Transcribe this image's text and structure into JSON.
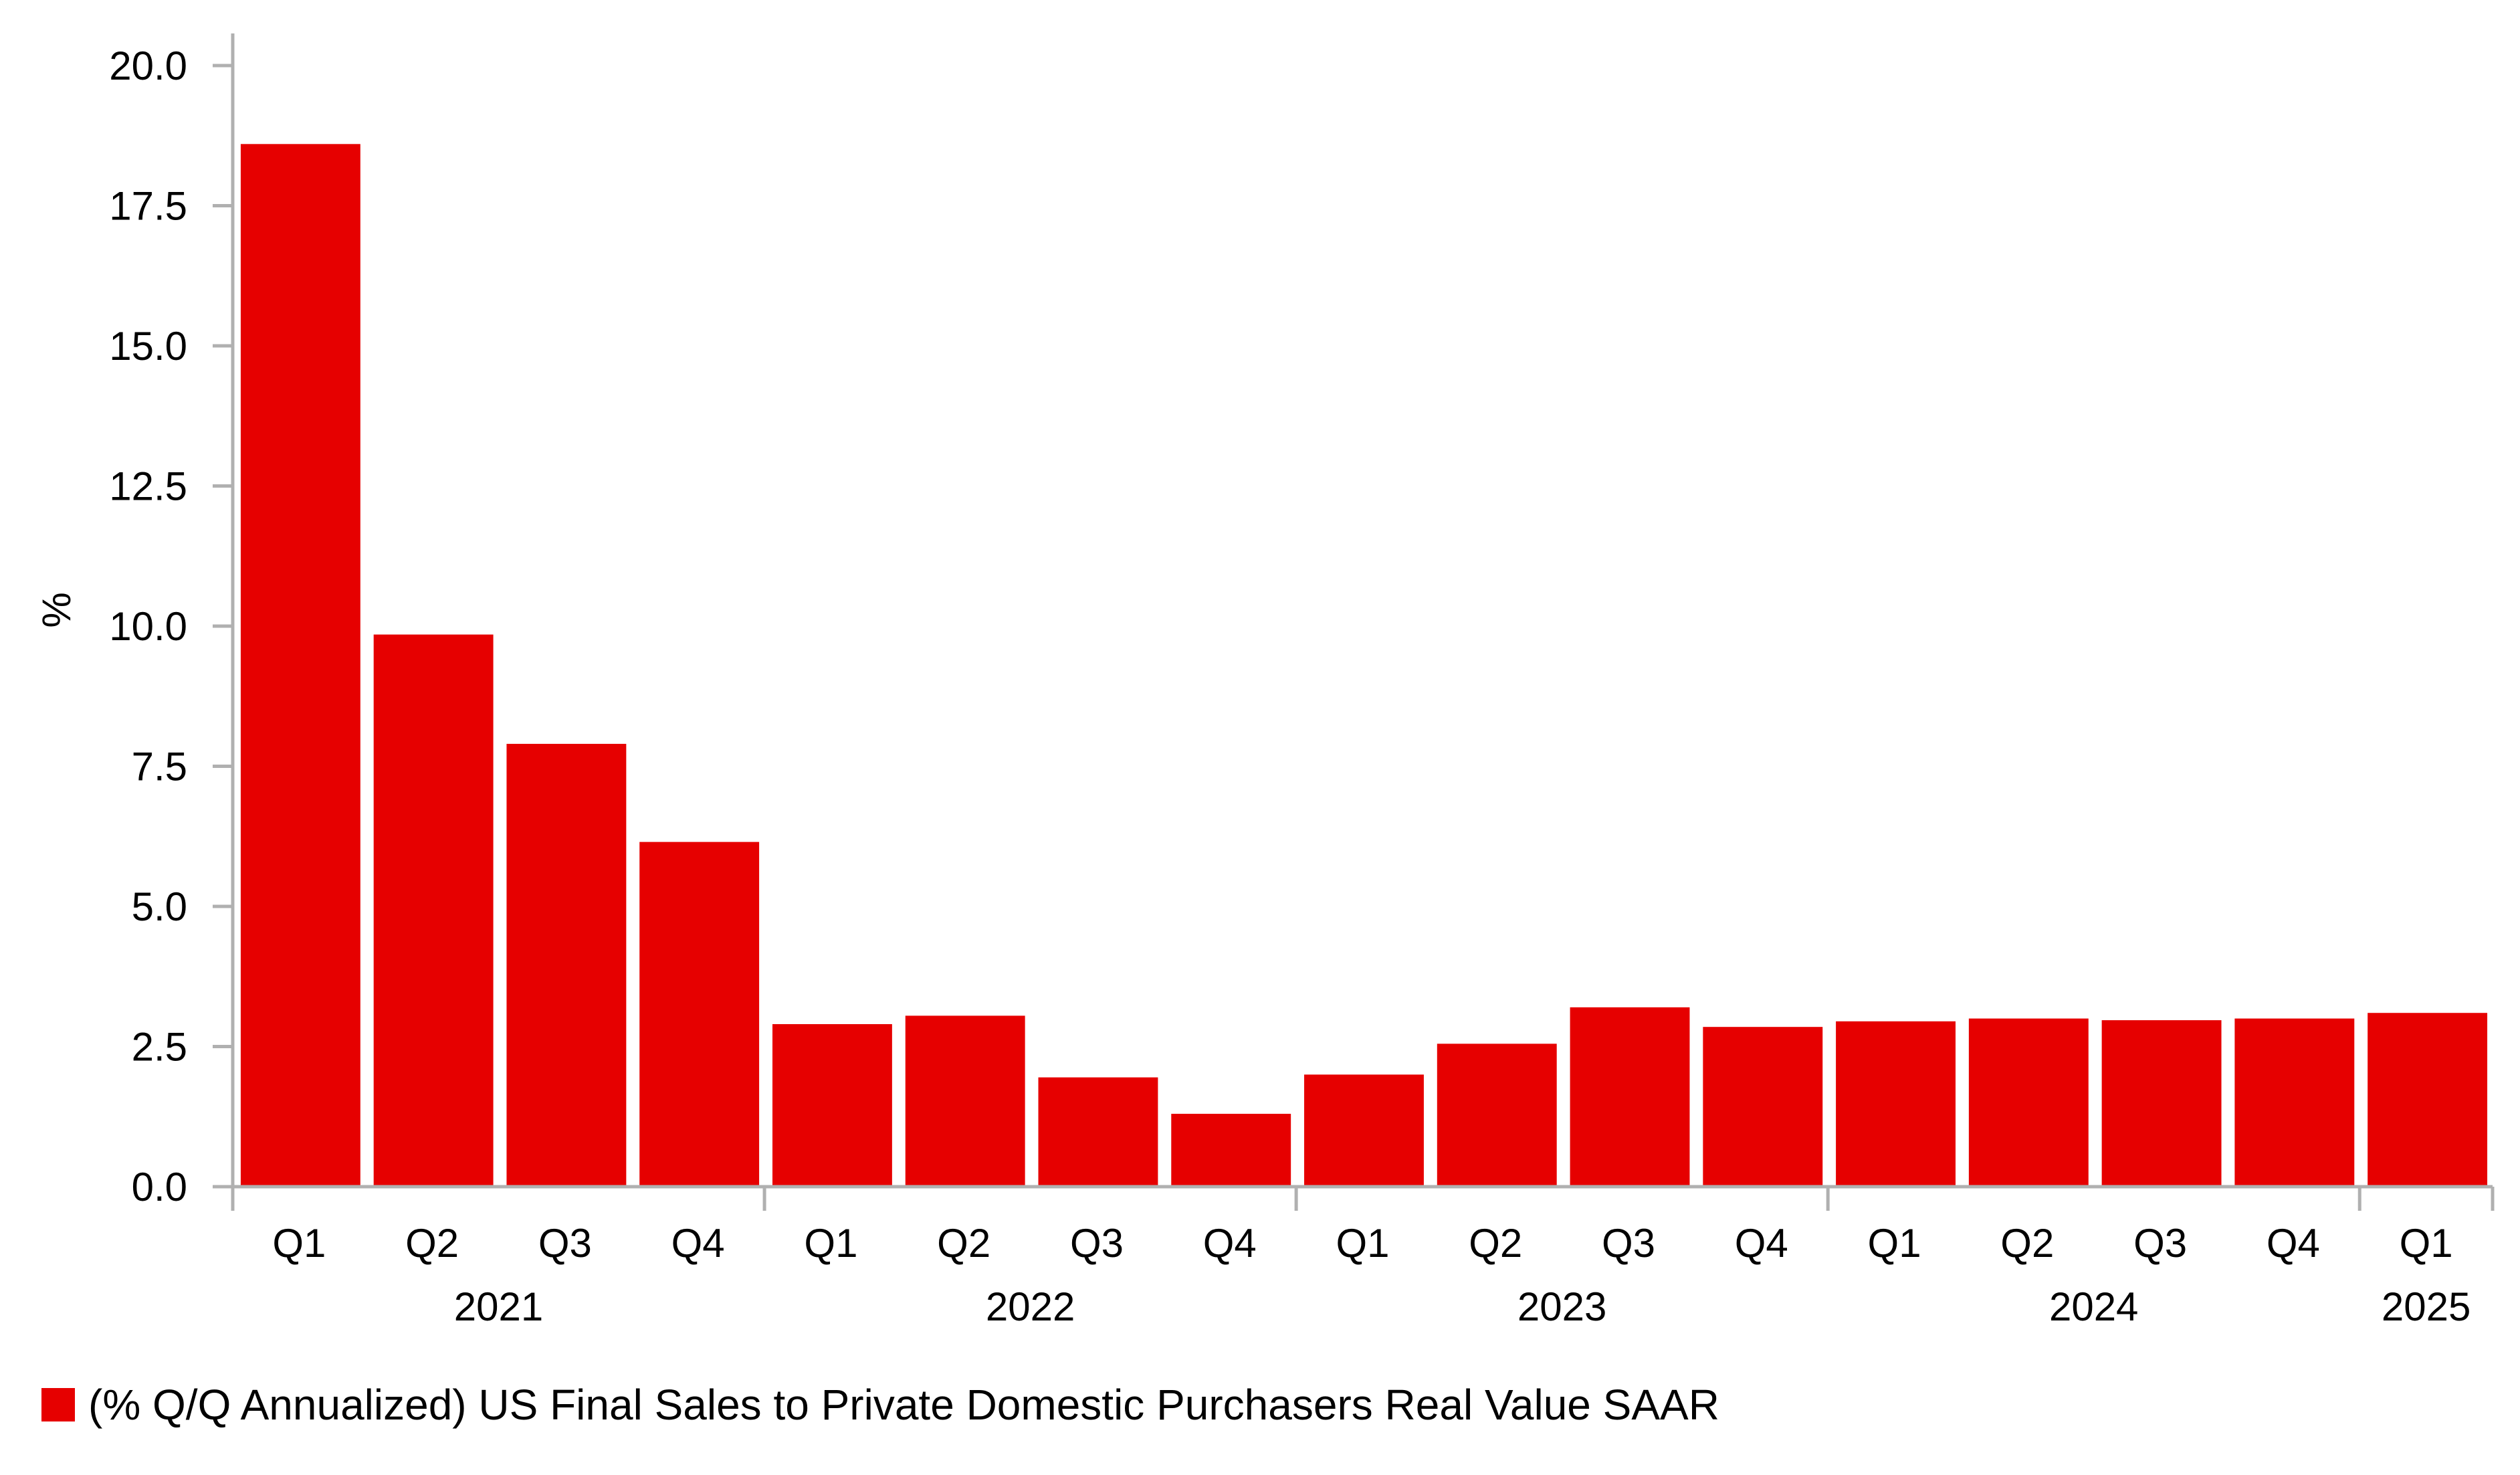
{
  "chart_data": {
    "type": "bar",
    "title": "",
    "xlabel": "",
    "ylabel": "%",
    "ylim": [
      0,
      20
    ],
    "yticks": [
      "0.0",
      "2.5",
      "5.0",
      "7.5",
      "10.0",
      "12.5",
      "15.0",
      "17.5",
      "20.0"
    ],
    "grid": false,
    "categories": [
      "Q1",
      "Q2",
      "Q3",
      "Q4",
      "Q1",
      "Q2",
      "Q3",
      "Q4",
      "Q1",
      "Q2",
      "Q3",
      "Q4",
      "Q1",
      "Q2",
      "Q3",
      "Q4",
      "Q1"
    ],
    "years": [
      {
        "label": "2021",
        "count": 4
      },
      {
        "label": "2022",
        "count": 4
      },
      {
        "label": "2023",
        "count": 4
      },
      {
        "label": "2024",
        "count": 4
      },
      {
        "label": "2025",
        "count": 1
      }
    ],
    "series": [
      {
        "name": "(% Q/Q Annualized) US Final Sales to Private Domestic Purchasers Real Value SAAR",
        "color": "#e60000",
        "values": [
          18.6,
          9.85,
          7.9,
          6.15,
          2.9,
          3.05,
          1.95,
          1.3,
          2.0,
          2.55,
          3.2,
          2.85,
          2.95,
          3.0,
          2.97,
          3.0,
          3.1
        ]
      }
    ],
    "legend_position": "bottom-left"
  }
}
